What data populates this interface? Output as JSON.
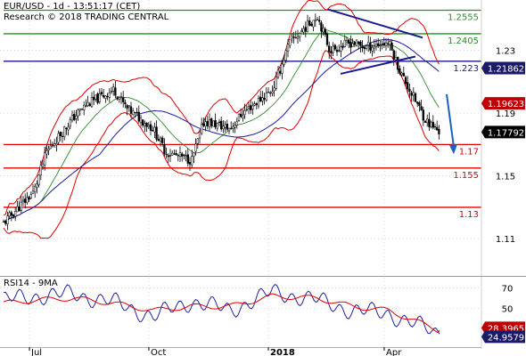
{
  "header": {
    "title": "EUR/USD - 1d - 13:51:17 (CET)",
    "copyright": "Research © 2018 TRADING CENTRAL"
  },
  "colors": {
    "background": "#ffffff",
    "grid": "#c8c8c8",
    "candle": "#000000",
    "bollinger": "#e00000",
    "ma_blue": "#1a1aa0",
    "ma_green": "#2e8b2e",
    "resistance": "#2e8b2e",
    "pivot": "#1a1a8c",
    "support": "#e00000",
    "triangle": "#1a1a8c",
    "arrow": "#1f5fc0",
    "rsi_line": "#2020a0",
    "rsi_ma": "#e00000",
    "tag_red": "#c00000",
    "tag_navy": "#1a1a66",
    "tag_black": "#000000"
  },
  "chart_data": [
    {
      "type": "candlestick",
      "title": "EUR/USD - 1d",
      "timeframe": "1d",
      "x_ticks": [
        "Jul",
        "Oct",
        "2018",
        "Apr"
      ],
      "y_ticks": [
        1.11,
        1.15,
        1.19,
        1.23
      ],
      "ylim": [
        1.092,
        1.262
      ],
      "grid": false,
      "overlays": [
        "Bollinger bands",
        "moving averages"
      ],
      "close_path": [
        {
          "x": "Jun",
          "y": 1.12
        },
        {
          "x": "Jul",
          "y": 1.14
        },
        {
          "x": "Jul",
          "y": 1.165
        },
        {
          "x": "Aug",
          "y": 1.187
        },
        {
          "x": "Aug",
          "y": 1.195
        },
        {
          "x": "Sep",
          "y": 1.205
        },
        {
          "x": "Sep",
          "y": 1.193
        },
        {
          "x": "Oct",
          "y": 1.18
        },
        {
          "x": "Oct",
          "y": 1.165
        },
        {
          "x": "Nov",
          "y": 1.16
        },
        {
          "x": "Nov",
          "y": 1.185
        },
        {
          "x": "Dec",
          "y": 1.18
        },
        {
          "x": "Dec",
          "y": 1.19
        },
        {
          "x": "2018",
          "y": 1.205
        },
        {
          "x": "Jan",
          "y": 1.235
        },
        {
          "x": "Feb",
          "y": 1.252
        },
        {
          "x": "Feb",
          "y": 1.23
        },
        {
          "x": "Mar",
          "y": 1.235
        },
        {
          "x": "Mar",
          "y": 1.232
        },
        {
          "x": "Apr",
          "y": 1.235
        },
        {
          "x": "Apr",
          "y": 1.215
        },
        {
          "x": "May",
          "y": 1.185
        },
        {
          "x": "May",
          "y": 1.1779
        }
      ],
      "levels": [
        {
          "value": 1.2555,
          "label": "1.2555",
          "kind": "resistance"
        },
        {
          "value": 1.2405,
          "label": "1.2405",
          "kind": "resistance"
        },
        {
          "value": 1.223,
          "label": "1.223",
          "kind": "pivot"
        },
        {
          "value": 1.17,
          "label": "1.17",
          "kind": "support"
        },
        {
          "value": 1.155,
          "label": "1.155",
          "kind": "support"
        },
        {
          "value": 1.13,
          "label": "1.13",
          "kind": "support"
        }
      ],
      "triangle": {
        "upper": [
          {
            "x": "Feb",
            "y": 1.256
          },
          {
            "x": "Apr",
            "y": 1.238
          }
        ],
        "lower": [
          {
            "x": "Mar",
            "y": 1.215
          },
          {
            "x": "Apr",
            "y": 1.226
          }
        ]
      },
      "arrow": {
        "from": {
          "x": "May",
          "y": 1.202
        },
        "to": {
          "x": "May",
          "y": 1.165
        }
      },
      "price_tags": [
        {
          "value": 1.21862,
          "label": "1.21862",
          "style": "navy"
        },
        {
          "value": 1.19623,
          "label": "1.19623",
          "style": "red"
        },
        {
          "value": 1.17792,
          "label": "1.17792",
          "style": "black"
        }
      ]
    },
    {
      "type": "line",
      "title": "RSI14 - 9MA",
      "x_ticks": [
        "Jul",
        "Oct",
        "2018",
        "Apr"
      ],
      "y_ticks": [
        50,
        70
      ],
      "ylim": [
        14,
        80
      ],
      "series": [
        {
          "name": "RSI14",
          "points": [
            {
              "x": "Jun",
              "y": 58
            },
            {
              "x": "Jul",
              "y": 62
            },
            {
              "x": "Aug",
              "y": 64
            },
            {
              "x": "Sep",
              "y": 56
            },
            {
              "x": "Oct",
              "y": 42
            },
            {
              "x": "Nov",
              "y": 57
            },
            {
              "x": "Dec",
              "y": 48
            },
            {
              "x": "2018",
              "y": 66
            },
            {
              "x": "Feb",
              "y": 58
            },
            {
              "x": "Mar",
              "y": 48
            },
            {
              "x": "Apr",
              "y": 45
            },
            {
              "x": "May",
              "y": 24.9579
            }
          ]
        },
        {
          "name": "9MA",
          "points": [
            {
              "x": "Jun",
              "y": 55
            },
            {
              "x": "Jul",
              "y": 58
            },
            {
              "x": "Aug",
              "y": 60
            },
            {
              "x": "Sep",
              "y": 55
            },
            {
              "x": "Oct",
              "y": 48
            },
            {
              "x": "Nov",
              "y": 52
            },
            {
              "x": "Dec",
              "y": 52
            },
            {
              "x": "2018",
              "y": 62
            },
            {
              "x": "Feb",
              "y": 60
            },
            {
              "x": "Mar",
              "y": 52
            },
            {
              "x": "Apr",
              "y": 48
            },
            {
              "x": "May",
              "y": 28.3965
            }
          ]
        }
      ],
      "value_tags": [
        {
          "value": 28.3965,
          "label": "28.3965",
          "style": "red"
        },
        {
          "value": 24.9579,
          "label": "24.9579",
          "style": "navy"
        }
      ]
    }
  ]
}
